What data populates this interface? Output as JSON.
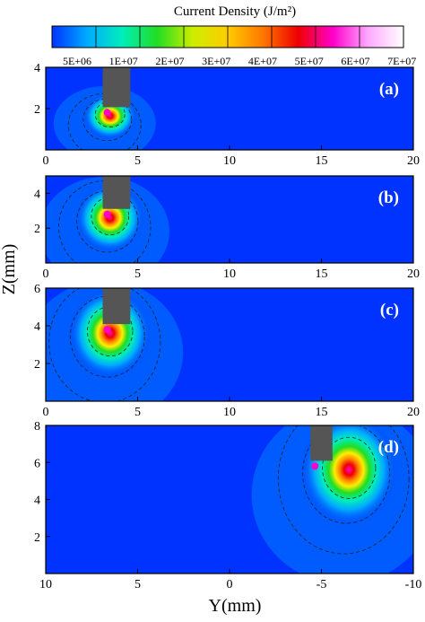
{
  "colorbar": {
    "title": "Current Density (J/m²)",
    "tick_labels": [
      "5E+06",
      "1E+07",
      "2E+07",
      "3E+07",
      "4E+07",
      "5E+07",
      "6E+07",
      "7E+07"
    ],
    "colors": [
      "#0033ff",
      "#00aaff",
      "#00eebb",
      "#22dd22",
      "#ccee00",
      "#ffcc00",
      "#ff7700",
      "#ee0000",
      "#ff00cc",
      "#ffaaff",
      "#ffffff"
    ]
  },
  "axes_labels": {
    "y_axis": "Z(mm)",
    "x_axis": "Y(mm)"
  },
  "chart_data": [
    {
      "type": "heatmap",
      "panel_label": "(a)",
      "xlim": [
        0,
        20
      ],
      "ylim": [
        0,
        4
      ],
      "xticks": [
        0,
        5,
        10,
        15,
        20
      ],
      "yticks": [
        2,
        4
      ],
      "electrode_y": [
        3.1,
        4.6
      ],
      "hotspot": [
        3.5,
        1.9
      ]
    },
    {
      "type": "heatmap",
      "panel_label": "(b)",
      "xlim": [
        0,
        20
      ],
      "ylim": [
        0,
        5
      ],
      "xticks": [
        0,
        5,
        10,
        15,
        20
      ],
      "yticks": [
        2,
        4
      ],
      "electrode_y": [
        3.1,
        4.6
      ],
      "hotspot": [
        3.5,
        2.9
      ]
    },
    {
      "type": "heatmap",
      "panel_label": "(c)",
      "xlim": [
        0,
        20
      ],
      "ylim": [
        0,
        6
      ],
      "xticks": [
        0,
        5,
        10,
        15,
        20
      ],
      "yticks": [
        2,
        4,
        6
      ],
      "electrode_y": [
        3.1,
        4.6
      ],
      "hotspot": [
        3.5,
        3.9
      ]
    },
    {
      "type": "heatmap",
      "panel_label": "(d)",
      "xlim": [
        10,
        -10
      ],
      "ylim": [
        0,
        8
      ],
      "xticks": [
        10,
        5,
        0,
        -5,
        -10
      ],
      "xtick_labels": [
        "10",
        "5",
        "0",
        "-5",
        "-10"
      ],
      "yticks": [
        2,
        4,
        6,
        8
      ],
      "electrode_y": [
        -5.6,
        -4.4
      ],
      "hotspot": [
        -6.5,
        5.9
      ]
    }
  ]
}
